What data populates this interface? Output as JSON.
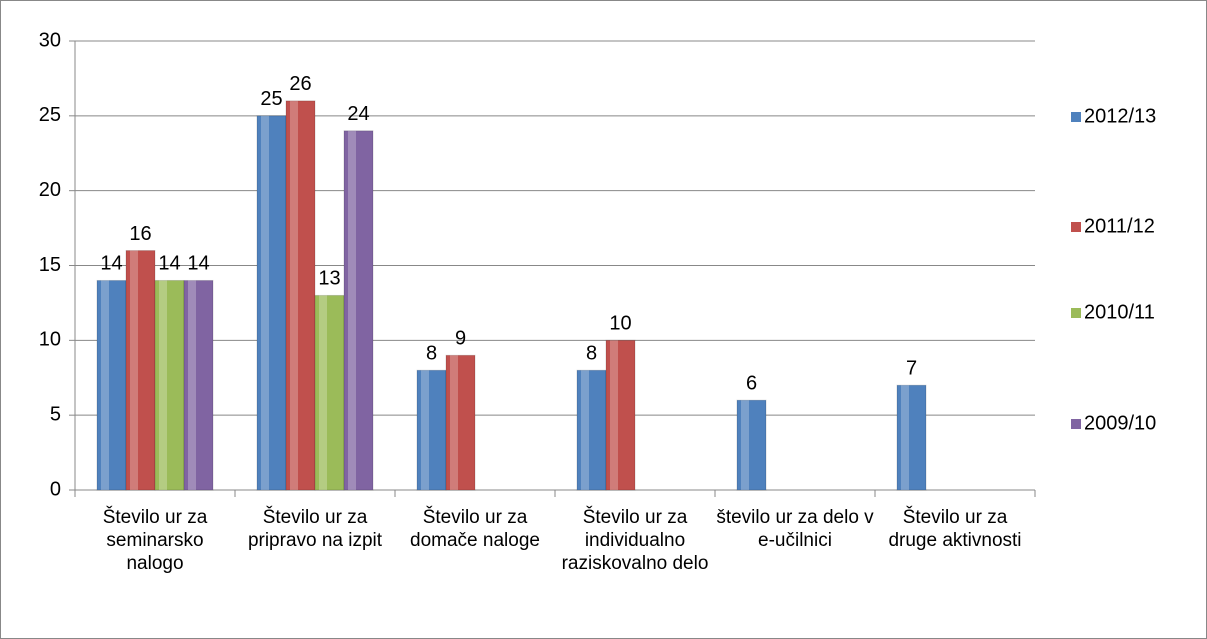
{
  "chart_data": {
    "type": "bar",
    "categories": [
      "Število ur za seminarsko nalogo",
      "Število ur za pripravo na izpit",
      "Število ur za domače naloge",
      "Število ur za individualno raziskovalno delo",
      "število ur za delo v e-učilnici",
      "Število ur za druge aktivnosti"
    ],
    "series": [
      {
        "name": "2012/13",
        "color": "#4f81bd",
        "values": [
          14,
          25,
          8,
          8,
          6,
          7
        ]
      },
      {
        "name": "2011/12",
        "color": "#c0504d",
        "values": [
          16,
          26,
          9,
          10,
          null,
          null
        ]
      },
      {
        "name": "2010/11",
        "color": "#9bbb59",
        "values": [
          14,
          13,
          null,
          null,
          null,
          null
        ]
      },
      {
        "name": "2009/10",
        "color": "#8064a2",
        "values": [
          14,
          24,
          null,
          null,
          null,
          null
        ]
      }
    ],
    "ylim": [
      0,
      30
    ],
    "yticks": [
      0,
      5,
      10,
      15,
      20,
      25,
      30
    ],
    "grid": true,
    "legend": "right"
  }
}
